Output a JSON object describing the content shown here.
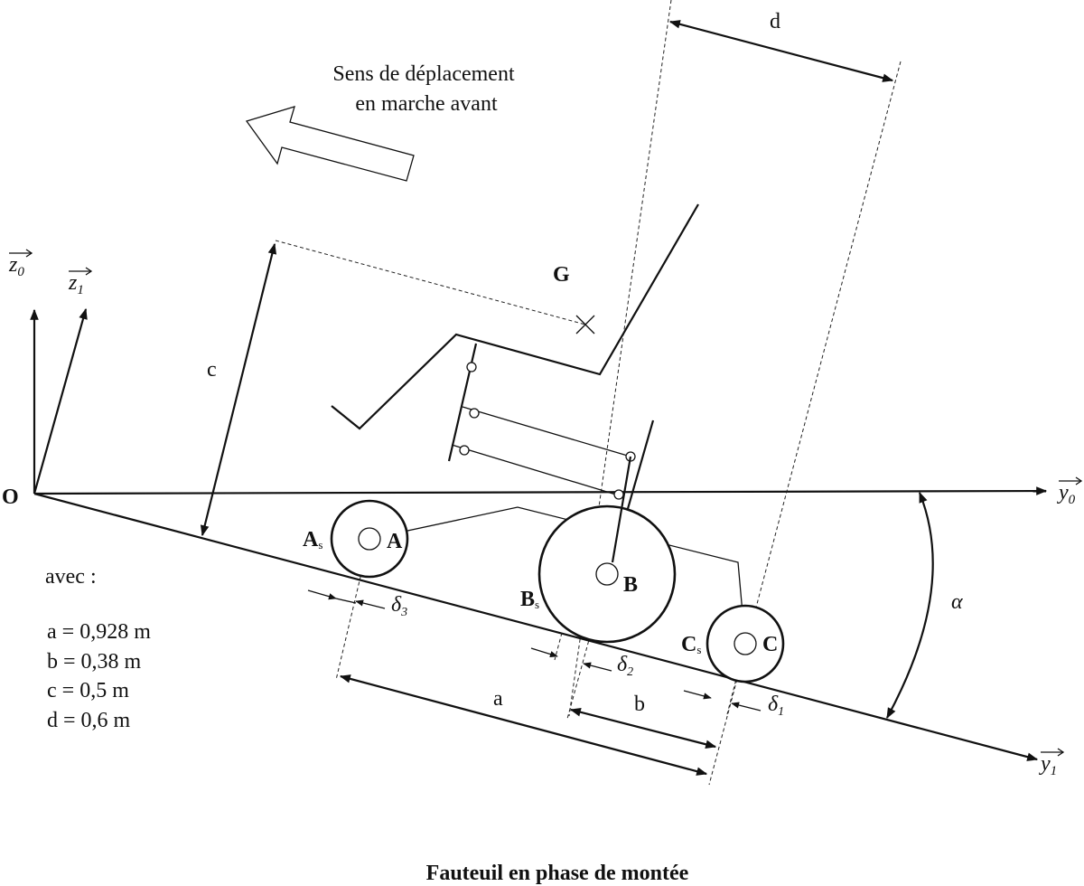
{
  "caption": "Fauteuil en phase de montée",
  "direction": {
    "line1": "Sens de déplacement",
    "line2": "en marche avant"
  },
  "axes": {
    "z0": "z",
    "z0_sub": "0",
    "z1": "z",
    "z1_sub": "1",
    "y0": "y",
    "y0_sub": "0",
    "y1": "y",
    "y1_sub": "1"
  },
  "points": {
    "origin": "O",
    "G": "G",
    "A": "A",
    "As": "A",
    "As_sub": "s",
    "B": "B",
    "Bs": "B",
    "Bs_sub": "s",
    "C": "C",
    "Cs": "C",
    "Cs_sub": "s"
  },
  "dimensions": {
    "a": "a",
    "b": "b",
    "c": "c",
    "d": "d",
    "delta1": "δ",
    "delta1_sub": "1",
    "delta2": "δ",
    "delta2_sub": "2",
    "delta3": "δ",
    "delta3_sub": "3",
    "alpha": "α"
  },
  "values": {
    "heading": "avec :",
    "a": "a = 0,928 m",
    "b": "b = 0,38 m",
    "c": "c = 0,5 m",
    "d": "d = 0,6 m"
  }
}
